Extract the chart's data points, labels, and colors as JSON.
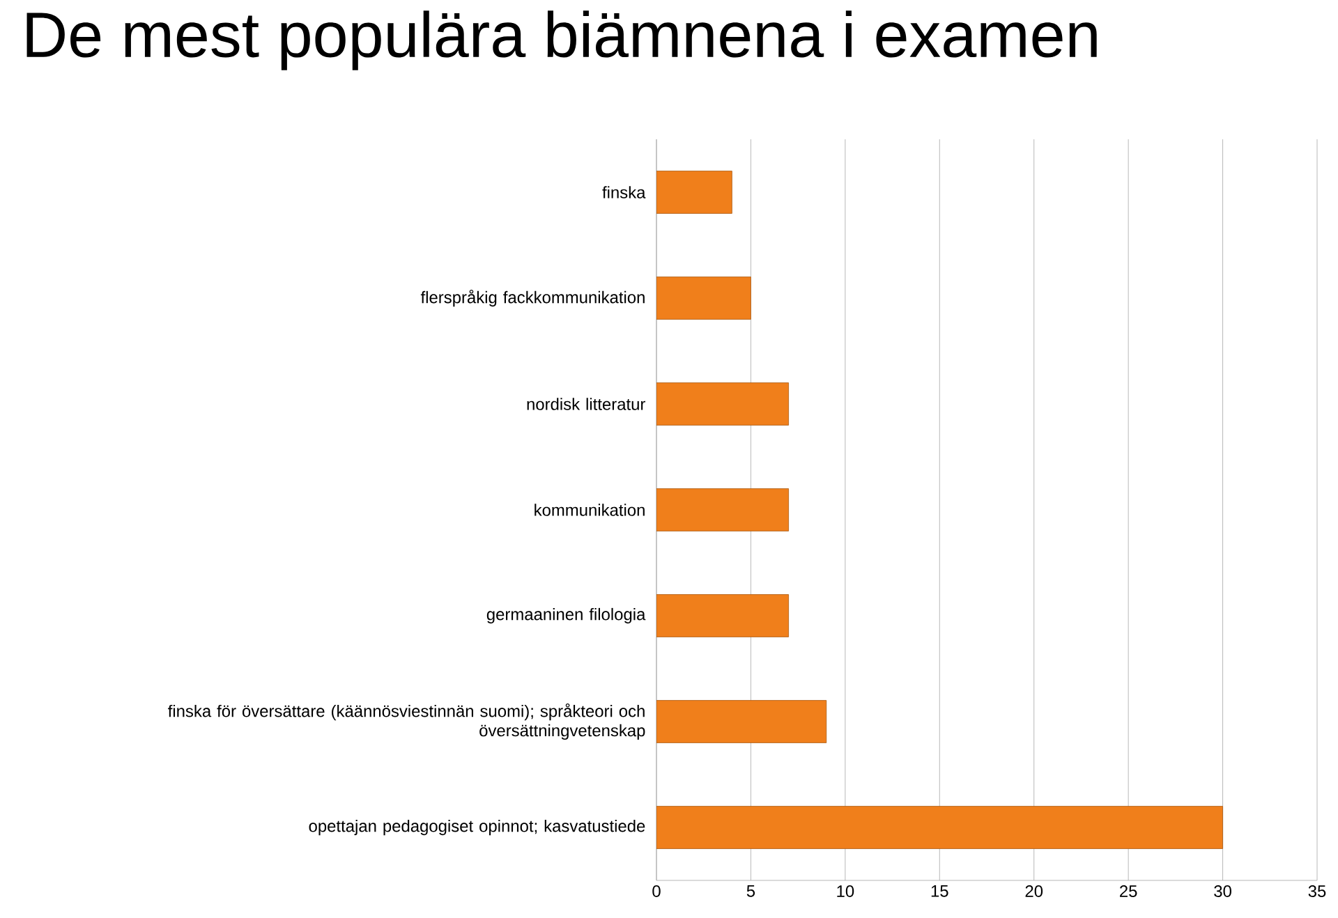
{
  "chart_data": {
    "type": "bar",
    "orientation": "horizontal",
    "title": "De mest populära biämnena i examen",
    "categories": [
      "finska",
      "flerspråkig fackkommunikation",
      "nordisk litteratur",
      "kommunikation",
      "germaaninen filologia",
      "finska för översättare (käännösviestinnän suomi); språkteori och översättningvetenskap",
      "opettajan pedagogiset opinnot; kasvatustiede"
    ],
    "values": [
      4,
      5,
      7,
      7,
      7,
      9,
      30
    ],
    "color": "#f07f1b",
    "xlim": [
      0,
      35
    ],
    "xticks": [
      0,
      5,
      10,
      15,
      20,
      25,
      30,
      35
    ],
    "grid": "x"
  }
}
